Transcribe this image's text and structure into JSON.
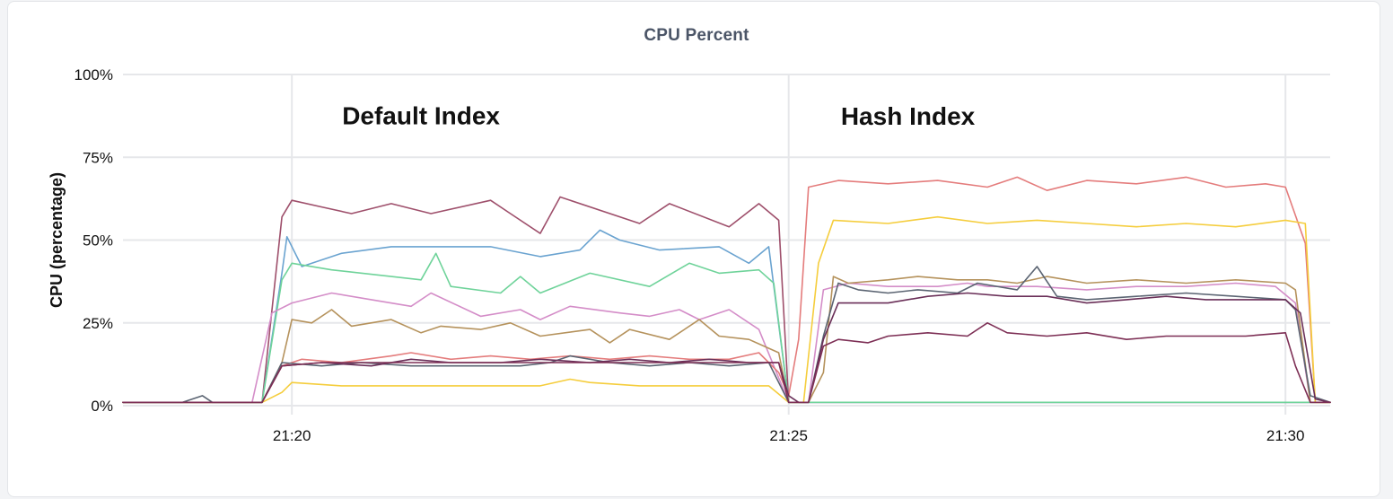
{
  "chart_data": {
    "type": "line",
    "title": "CPU Percent",
    "ylabel": "CPU (percentage)",
    "xlabel": "",
    "ylim": [
      0,
      100
    ],
    "x_range_minutes": [
      18.3,
      30.45
    ],
    "yticks": [
      0,
      25,
      50,
      75,
      100
    ],
    "yticklabels": [
      "0%",
      "25%",
      "50%",
      "75%",
      "100%"
    ],
    "xticks": [
      20,
      25,
      30
    ],
    "xticklabels": [
      "21:20",
      "21:25",
      "21:30"
    ],
    "grid": true,
    "legend": "none",
    "annotations": [
      {
        "text": "Default Index",
        "x": 21.3,
        "y": 85
      },
      {
        "text": "Hash Index",
        "x": 26.2,
        "y": 84.8
      }
    ],
    "series": [
      {
        "color": "#9e4f6b",
        "values": [
          [
            18.3,
            1
          ],
          [
            19.7,
            1
          ],
          [
            19.9,
            57
          ],
          [
            20,
            62
          ],
          [
            20.3,
            60
          ],
          [
            20.6,
            58
          ],
          [
            21,
            61
          ],
          [
            21.4,
            58
          ],
          [
            22,
            62
          ],
          [
            22.2,
            58
          ],
          [
            22.5,
            52
          ],
          [
            22.7,
            63
          ],
          [
            23.5,
            55
          ],
          [
            23.8,
            61
          ],
          [
            24.4,
            54
          ],
          [
            24.7,
            61
          ],
          [
            24.9,
            56
          ],
          [
            25,
            1
          ],
          [
            30.45,
            1
          ]
        ]
      },
      {
        "color": "#6aa3d0",
        "values": [
          [
            18.3,
            1
          ],
          [
            19.7,
            1
          ],
          [
            19.9,
            40
          ],
          [
            19.95,
            51
          ],
          [
            20.1,
            42
          ],
          [
            20.5,
            46
          ],
          [
            21,
            48
          ],
          [
            21.5,
            48
          ],
          [
            22,
            48
          ],
          [
            22.5,
            45
          ],
          [
            22.9,
            47
          ],
          [
            23.1,
            53
          ],
          [
            23.3,
            50
          ],
          [
            23.7,
            47
          ],
          [
            24.3,
            48
          ],
          [
            24.6,
            43
          ],
          [
            24.8,
            48
          ],
          [
            25,
            1
          ],
          [
            30.45,
            1
          ]
        ]
      },
      {
        "color": "#6fd39a",
        "values": [
          [
            18.3,
            1
          ],
          [
            19.7,
            1
          ],
          [
            19.9,
            38
          ],
          [
            20,
            43
          ],
          [
            20.4,
            41
          ],
          [
            21,
            39
          ],
          [
            21.3,
            38
          ],
          [
            21.45,
            46
          ],
          [
            21.6,
            36
          ],
          [
            22.1,
            34
          ],
          [
            22.3,
            39
          ],
          [
            22.5,
            34
          ],
          [
            23,
            40
          ],
          [
            23.6,
            36
          ],
          [
            24,
            43
          ],
          [
            24.3,
            40
          ],
          [
            24.7,
            41
          ],
          [
            24.85,
            37
          ],
          [
            25,
            1
          ],
          [
            30.45,
            1
          ]
        ]
      },
      {
        "color": "#d48dc8",
        "values": [
          [
            18.3,
            1
          ],
          [
            19.6,
            1
          ],
          [
            19.8,
            28
          ],
          [
            20,
            31
          ],
          [
            20.4,
            34
          ],
          [
            20.8,
            32
          ],
          [
            21.2,
            30
          ],
          [
            21.4,
            34
          ],
          [
            21.9,
            27
          ],
          [
            22.3,
            29
          ],
          [
            22.5,
            26
          ],
          [
            22.8,
            30
          ],
          [
            23.3,
            28
          ],
          [
            23.6,
            27
          ],
          [
            23.9,
            29
          ],
          [
            24.1,
            26
          ],
          [
            24.4,
            29
          ],
          [
            24.7,
            23
          ],
          [
            25,
            1
          ],
          [
            25.2,
            1
          ],
          [
            25.35,
            35
          ],
          [
            25.6,
            37
          ],
          [
            26,
            36
          ],
          [
            26.5,
            36
          ],
          [
            26.8,
            37
          ],
          [
            27,
            36
          ],
          [
            27.5,
            36
          ],
          [
            28,
            35
          ],
          [
            28.5,
            36
          ],
          [
            29,
            36
          ],
          [
            29.5,
            37
          ],
          [
            29.9,
            36
          ],
          [
            30.1,
            31
          ],
          [
            30.25,
            1
          ],
          [
            30.45,
            1
          ]
        ]
      },
      {
        "color": "#b5925c",
        "values": [
          [
            18.3,
            1
          ],
          [
            19.7,
            1
          ],
          [
            19.9,
            13
          ],
          [
            20,
            26
          ],
          [
            20.2,
            25
          ],
          [
            20.4,
            29
          ],
          [
            20.6,
            24
          ],
          [
            21,
            26
          ],
          [
            21.3,
            22
          ],
          [
            21.5,
            24
          ],
          [
            21.9,
            23
          ],
          [
            22.2,
            25
          ],
          [
            22.5,
            21
          ],
          [
            23,
            23
          ],
          [
            23.2,
            19
          ],
          [
            23.4,
            23
          ],
          [
            23.8,
            20
          ],
          [
            24.1,
            26
          ],
          [
            24.3,
            21
          ],
          [
            24.6,
            20
          ],
          [
            24.9,
            16
          ],
          [
            25,
            1
          ],
          [
            25.2,
            1
          ],
          [
            25.35,
            10
          ],
          [
            25.45,
            39
          ],
          [
            25.6,
            37
          ],
          [
            26,
            38
          ],
          [
            26.3,
            39
          ],
          [
            26.7,
            38
          ],
          [
            27,
            38
          ],
          [
            27.3,
            37
          ],
          [
            27.6,
            39
          ],
          [
            28,
            37
          ],
          [
            28.5,
            38
          ],
          [
            29,
            37
          ],
          [
            29.5,
            38
          ],
          [
            30,
            37
          ],
          [
            30.1,
            35
          ],
          [
            30.25,
            1
          ],
          [
            30.45,
            1
          ]
        ]
      },
      {
        "color": "#e47c7c",
        "values": [
          [
            18.3,
            1
          ],
          [
            19.7,
            1
          ],
          [
            19.9,
            12
          ],
          [
            20.1,
            14
          ],
          [
            20.5,
            13
          ],
          [
            21,
            15
          ],
          [
            21.2,
            16
          ],
          [
            21.6,
            14
          ],
          [
            22,
            15
          ],
          [
            22.4,
            14
          ],
          [
            22.8,
            15
          ],
          [
            23.2,
            14
          ],
          [
            23.6,
            15
          ],
          [
            24,
            14
          ],
          [
            24.4,
            14
          ],
          [
            24.7,
            16
          ],
          [
            24.9,
            10
          ],
          [
            25,
            3
          ],
          [
            25.1,
            20
          ],
          [
            25.2,
            66
          ],
          [
            25.5,
            68
          ],
          [
            26,
            67
          ],
          [
            26.5,
            68
          ],
          [
            27,
            66
          ],
          [
            27.3,
            69
          ],
          [
            27.6,
            65
          ],
          [
            28,
            68
          ],
          [
            28.5,
            67
          ],
          [
            29,
            69
          ],
          [
            29.4,
            66
          ],
          [
            29.8,
            67
          ],
          [
            30,
            66
          ],
          [
            30.2,
            49
          ],
          [
            30.3,
            1
          ],
          [
            30.45,
            1
          ]
        ]
      },
      {
        "color": "#f5cd3c",
        "values": [
          [
            18.3,
            1
          ],
          [
            19.7,
            1
          ],
          [
            19.9,
            4
          ],
          [
            20,
            7
          ],
          [
            20.5,
            6
          ],
          [
            21,
            6
          ],
          [
            21.5,
            6
          ],
          [
            22,
            6
          ],
          [
            22.5,
            6
          ],
          [
            22.8,
            8
          ],
          [
            23,
            7
          ],
          [
            23.5,
            6
          ],
          [
            24,
            6
          ],
          [
            24.5,
            6
          ],
          [
            24.8,
            6
          ],
          [
            25,
            1
          ],
          [
            25.15,
            1
          ],
          [
            25.3,
            43
          ],
          [
            25.45,
            56
          ],
          [
            26,
            55
          ],
          [
            26.5,
            57
          ],
          [
            27,
            55
          ],
          [
            27.5,
            56
          ],
          [
            28,
            55
          ],
          [
            28.5,
            54
          ],
          [
            29,
            55
          ],
          [
            29.5,
            54
          ],
          [
            30,
            56
          ],
          [
            30.2,
            55
          ],
          [
            30.3,
            1
          ],
          [
            30.45,
            1
          ]
        ]
      },
      {
        "color": "#5b6472",
        "values": [
          [
            18.3,
            1
          ],
          [
            18.9,
            1
          ],
          [
            19.1,
            3
          ],
          [
            19.2,
            1
          ],
          [
            19.7,
            1
          ],
          [
            19.9,
            13
          ],
          [
            20.3,
            12
          ],
          [
            20.7,
            13
          ],
          [
            21.2,
            12
          ],
          [
            21.8,
            12
          ],
          [
            22.3,
            12
          ],
          [
            22.6,
            13
          ],
          [
            22.8,
            15
          ],
          [
            23.2,
            13
          ],
          [
            23.6,
            12
          ],
          [
            24,
            13
          ],
          [
            24.4,
            12
          ],
          [
            24.8,
            13
          ],
          [
            25,
            1
          ],
          [
            25.2,
            1
          ],
          [
            25.35,
            21
          ],
          [
            25.5,
            37
          ],
          [
            25.7,
            35
          ],
          [
            26,
            34
          ],
          [
            26.3,
            35
          ],
          [
            26.7,
            34
          ],
          [
            26.9,
            37
          ],
          [
            27.3,
            35
          ],
          [
            27.5,
            42
          ],
          [
            27.7,
            33
          ],
          [
            28,
            32
          ],
          [
            28.5,
            33
          ],
          [
            29,
            34
          ],
          [
            29.5,
            33
          ],
          [
            30,
            32
          ],
          [
            30.1,
            29
          ],
          [
            30.25,
            3
          ],
          [
            30.45,
            1
          ]
        ]
      },
      {
        "color": "#6a2f58",
        "values": [
          [
            18.3,
            1
          ],
          [
            19.7,
            1
          ],
          [
            19.9,
            12
          ],
          [
            20.3,
            13
          ],
          [
            20.8,
            12
          ],
          [
            21.2,
            14
          ],
          [
            21.6,
            13
          ],
          [
            22.1,
            13
          ],
          [
            22.5,
            14
          ],
          [
            23,
            13
          ],
          [
            23.4,
            14
          ],
          [
            23.8,
            13
          ],
          [
            24.2,
            14
          ],
          [
            24.6,
            13
          ],
          [
            24.9,
            13
          ],
          [
            25,
            3
          ],
          [
            25.1,
            1
          ],
          [
            25.2,
            1
          ],
          [
            25.35,
            20
          ],
          [
            25.5,
            31
          ],
          [
            26,
            31
          ],
          [
            26.4,
            33
          ],
          [
            26.8,
            34
          ],
          [
            27.2,
            33
          ],
          [
            27.6,
            33
          ],
          [
            28,
            31
          ],
          [
            28.4,
            32
          ],
          [
            28.8,
            33
          ],
          [
            29.2,
            32
          ],
          [
            29.6,
            32
          ],
          [
            30,
            32
          ],
          [
            30.15,
            28
          ],
          [
            30.3,
            2
          ],
          [
            30.45,
            1
          ]
        ]
      },
      {
        "color": "#7d2f55",
        "values": [
          [
            18.3,
            1
          ],
          [
            19.7,
            1
          ],
          [
            19.9,
            12
          ],
          [
            20.3,
            13
          ],
          [
            21,
            13
          ],
          [
            21.5,
            13
          ],
          [
            22,
            13
          ],
          [
            22.5,
            13
          ],
          [
            23,
            13
          ],
          [
            23.5,
            13
          ],
          [
            24,
            13
          ],
          [
            24.5,
            13
          ],
          [
            24.9,
            13
          ],
          [
            25,
            1
          ],
          [
            25.2,
            1
          ],
          [
            25.35,
            18
          ],
          [
            25.5,
            20
          ],
          [
            25.8,
            19
          ],
          [
            26,
            21
          ],
          [
            26.4,
            22
          ],
          [
            26.8,
            21
          ],
          [
            27,
            25
          ],
          [
            27.2,
            22
          ],
          [
            27.6,
            21
          ],
          [
            28,
            22
          ],
          [
            28.4,
            20
          ],
          [
            28.8,
            21
          ],
          [
            29.2,
            21
          ],
          [
            29.6,
            21
          ],
          [
            30,
            22
          ],
          [
            30.1,
            12
          ],
          [
            30.25,
            1
          ],
          [
            30.45,
            1
          ]
        ]
      }
    ]
  }
}
